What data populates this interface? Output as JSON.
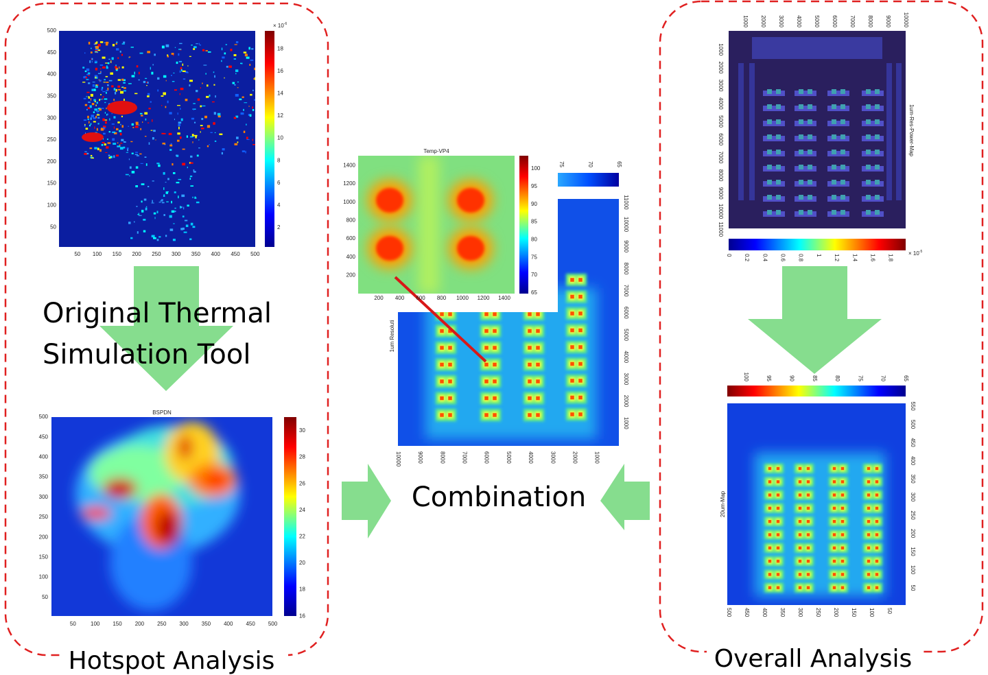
{
  "labels": {
    "tool": [
      "Original Thermal",
      "Simulation Tool"
    ],
    "hotspot": "Hotspot Analysis",
    "combination": "Combination",
    "overall": "Overall Analysis"
  },
  "hotspot_power_map": {
    "xticks": [
      50,
      100,
      150,
      200,
      250,
      300,
      350,
      400,
      450,
      500
    ],
    "yticks": [
      50,
      100,
      150,
      200,
      250,
      300,
      350,
      400,
      450,
      500
    ],
    "colorbar_ticks": [
      2,
      4,
      6,
      8,
      10,
      12,
      14,
      16,
      18
    ],
    "colorbar_scale": {
      "base": "× 10",
      "exponent": "-6"
    }
  },
  "hotspot_thermal_map": {
    "title": "BSPDN",
    "xticks": [
      50,
      100,
      150,
      200,
      250,
      300,
      350,
      400,
      450,
      500
    ],
    "yticks": [
      50,
      100,
      150,
      200,
      250,
      300,
      350,
      400,
      450,
      500
    ],
    "colorbar_ticks": [
      16,
      18,
      20,
      22,
      24,
      26,
      28,
      30
    ]
  },
  "combination_inset": {
    "title": "Temp-VP4",
    "xticks": [
      200,
      400,
      600,
      800,
      1000,
      1200,
      1400
    ],
    "yticks": [
      200,
      400,
      600,
      800,
      1000,
      1200,
      1400
    ],
    "colorbar_ticks": [
      65,
      70,
      75,
      80,
      85,
      90,
      95,
      100
    ]
  },
  "combination_map": {
    "ylabel": "1um Resoluti",
    "xticks": [
      10000,
      9000,
      8000,
      7000,
      6000,
      5000,
      4000,
      3000,
      2000,
      1000
    ],
    "yticks": [
      1000,
      2000,
      3000,
      4000,
      5000,
      6000,
      7000,
      8000,
      9000,
      10000,
      11000
    ],
    "colorbar_ticks": [
      75,
      70,
      65
    ]
  },
  "overall_power_map": {
    "ylabel": "1um-Res-Power-Map",
    "xticks": [
      1000,
      2000,
      3000,
      4000,
      5000,
      6000,
      7000,
      8000,
      9000,
      10000
    ],
    "yticks": [
      1000,
      2000,
      3000,
      4000,
      5000,
      6000,
      7000,
      8000,
      9000,
      10000,
      11000
    ],
    "colorbar_ticks": [
      0,
      0.2,
      0.4,
      0.6,
      0.8,
      1,
      1.2,
      1.4,
      1.6,
      1.8
    ],
    "colorbar_scale": {
      "base": "× 10",
      "exponent": "-5"
    }
  },
  "overall_thermal_map": {
    "ylabel": "20um-Map",
    "xticks": [
      500,
      450,
      400,
      350,
      300,
      250,
      200,
      150,
      100,
      50
    ],
    "yticks": [
      50,
      100,
      150,
      200,
      250,
      300,
      350,
      400,
      450,
      500,
      550
    ],
    "colorbar_ticks": [
      100,
      95,
      90,
      85,
      80,
      75,
      70,
      65
    ]
  }
}
